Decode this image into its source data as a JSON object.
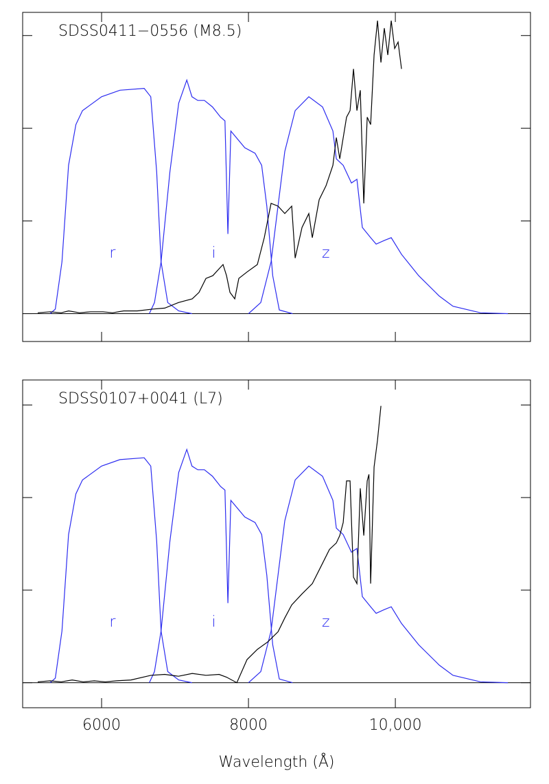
{
  "chart_data": [
    {
      "type": "line",
      "title": "SDSS0411−0556 (M8.5)",
      "xlim": [
        4925,
        11840
      ],
      "ylim": [
        -0.3,
        3.25
      ],
      "xticks": [
        6000,
        8000,
        10000
      ],
      "yticks": [
        0,
        1,
        2,
        3
      ],
      "tick_labels": false,
      "series": [
        {
          "name": "r",
          "color": "#2b2bf0",
          "x": [
            5300,
            5370,
            5460,
            5550,
            5650,
            5740,
            6000,
            6250,
            6580,
            6670,
            6750,
            6810,
            6900,
            7050,
            7230
          ],
          "values": [
            0,
            0.05,
            0.56,
            1.6,
            2.04,
            2.19,
            2.34,
            2.41,
            2.43,
            2.34,
            1.53,
            0.56,
            0.12,
            0.03,
            0
          ]
        },
        {
          "name": "i",
          "color": "#2b2bf0",
          "x": [
            6650,
            6720,
            6810,
            6930,
            7050,
            7160,
            7230,
            7310,
            7400,
            7510,
            7620,
            7680,
            7720,
            7760,
            7950,
            8090,
            8180,
            8250,
            8330,
            8420,
            8600
          ],
          "values": [
            0,
            0.12,
            0.56,
            1.53,
            2.27,
            2.52,
            2.34,
            2.3,
            2.3,
            2.23,
            2.12,
            2.08,
            0.86,
            1.97,
            1.79,
            1.73,
            1.6,
            1.16,
            0.41,
            0.04,
            0
          ]
        },
        {
          "name": "z",
          "color": "#2b2bf0",
          "x": [
            8000,
            8168,
            8308,
            8402,
            8495,
            8636,
            8822,
            9009,
            9150,
            9196,
            9290,
            9402,
            9477,
            9551,
            9664,
            9738,
            9850,
            9944,
            10084,
            10318,
            10598,
            10785,
            11159,
            11533
          ],
          "values": [
            0,
            0.12,
            0.56,
            1.16,
            1.75,
            2.19,
            2.34,
            2.23,
            1.97,
            1.67,
            1.6,
            1.41,
            1.45,
            0.93,
            0.82,
            0.75,
            0.79,
            0.82,
            0.64,
            0.41,
            0.19,
            0.08,
            0.01,
            0
          ]
        },
        {
          "color": "#000000",
          "x": [
            5131,
            5300,
            5450,
            5551,
            5700,
            5850,
            6019,
            6150,
            6300,
            6486,
            6700,
            6860,
            7047,
            7234,
            7327,
            7421,
            7514,
            7607,
            7654,
            7701,
            7748,
            7813,
            7869,
            7981,
            8121,
            8215,
            8308,
            8402,
            8495,
            8589,
            8636,
            8729,
            8822,
            8869,
            8963,
            9056,
            9150,
            9196,
            9243,
            9336,
            9383,
            9430,
            9477,
            9523,
            9570,
            9617,
            9664,
            9710,
            9757,
            9804,
            9850,
            9897,
            9944,
            9991,
            10037,
            10084
          ],
          "values": [
            0.01,
            0.02,
            0.01,
            0.03,
            0.01,
            0.02,
            0.02,
            0.01,
            0.03,
            0.03,
            0.05,
            0.06,
            0.12,
            0.16,
            0.23,
            0.38,
            0.41,
            0.49,
            0.53,
            0.41,
            0.23,
            0.16,
            0.38,
            0.45,
            0.53,
            0.82,
            1.19,
            1.16,
            1.08,
            1.16,
            0.6,
            0.93,
            1.08,
            0.82,
            1.23,
            1.38,
            1.6,
            1.9,
            1.67,
            2.12,
            2.19,
            2.64,
            2.19,
            2.41,
            1.19,
            2.12,
            2.04,
            2.79,
            3.16,
            2.71,
            3.08,
            2.79,
            3.16,
            2.86,
            2.93,
            2.64
          ]
        }
      ]
    },
    {
      "type": "line",
      "title": "SDSS0107+0041 (L7)",
      "xlabel": "Wavelength (Å)",
      "xlim": [
        4925,
        11840
      ],
      "ylim": [
        -0.27,
        3.27
      ],
      "xticks": [
        6000,
        8000,
        {
          "value": 10000,
          "label": "10,000"
        }
      ],
      "yticks": [
        0,
        1,
        2,
        3
      ],
      "tick_labels": true,
      "series": [
        {
          "name": "r",
          "color": "#2b2bf0",
          "x": [
            5300,
            5370,
            5460,
            5550,
            5650,
            5740,
            6000,
            6250,
            6580,
            6670,
            6750,
            6810,
            6900,
            7050,
            7230
          ],
          "values": [
            0,
            0.05,
            0.56,
            1.6,
            2.04,
            2.19,
            2.34,
            2.41,
            2.43,
            2.34,
            1.53,
            0.56,
            0.12,
            0.03,
            0
          ]
        },
        {
          "name": "i",
          "color": "#2b2bf0",
          "x": [
            6650,
            6720,
            6810,
            6930,
            7050,
            7160,
            7230,
            7310,
            7400,
            7510,
            7620,
            7680,
            7720,
            7760,
            7950,
            8090,
            8180,
            8250,
            8330,
            8420,
            8600
          ],
          "values": [
            0,
            0.12,
            0.56,
            1.53,
            2.27,
            2.52,
            2.34,
            2.3,
            2.3,
            2.23,
            2.12,
            2.08,
            0.86,
            1.97,
            1.79,
            1.73,
            1.6,
            1.16,
            0.41,
            0.04,
            0
          ]
        },
        {
          "name": "z",
          "color": "#2b2bf0",
          "x": [
            8000,
            8168,
            8308,
            8402,
            8495,
            8636,
            8822,
            9009,
            9150,
            9196,
            9290,
            9402,
            9477,
            9551,
            9664,
            9738,
            9850,
            9944,
            10084,
            10318,
            10598,
            10785,
            11159,
            11533
          ],
          "values": [
            0,
            0.12,
            0.56,
            1.16,
            1.75,
            2.19,
            2.34,
            2.23,
            1.97,
            1.67,
            1.6,
            1.41,
            1.45,
            0.93,
            0.82,
            0.75,
            0.79,
            0.82,
            0.64,
            0.41,
            0.19,
            0.08,
            0.01,
            0
          ]
        },
        {
          "color": "#000000",
          "x": [
            5131,
            5300,
            5450,
            5600,
            5750,
            5900,
            6050,
            6200,
            6400,
            6673,
            6860,
            7047,
            7234,
            7421,
            7600,
            7701,
            7841,
            7981,
            8121,
            8261,
            8402,
            8495,
            8589,
            8729,
            8869,
            9009,
            9103,
            9196,
            9243,
            9290,
            9336,
            9383,
            9430,
            9477,
            9523,
            9570,
            9617,
            9640,
            9664,
            9710,
            9757,
            9804
          ],
          "values": [
            0.01,
            0.02,
            0.01,
            0.03,
            0.01,
            0.02,
            0.01,
            0.02,
            0.03,
            0.08,
            0.09,
            0.07,
            0.1,
            0.08,
            0.09,
            0.06,
            0,
            0.25,
            0.36,
            0.44,
            0.55,
            0.7,
            0.84,
            0.96,
            1.07,
            1.29,
            1.44,
            1.51,
            1.59,
            1.73,
            2.18,
            2.18,
            1.14,
            1.07,
            2.1,
            1.59,
            2.18,
            2.25,
            1.07,
            2.33,
            2.62,
            2.99
          ]
        }
      ]
    }
  ]
}
